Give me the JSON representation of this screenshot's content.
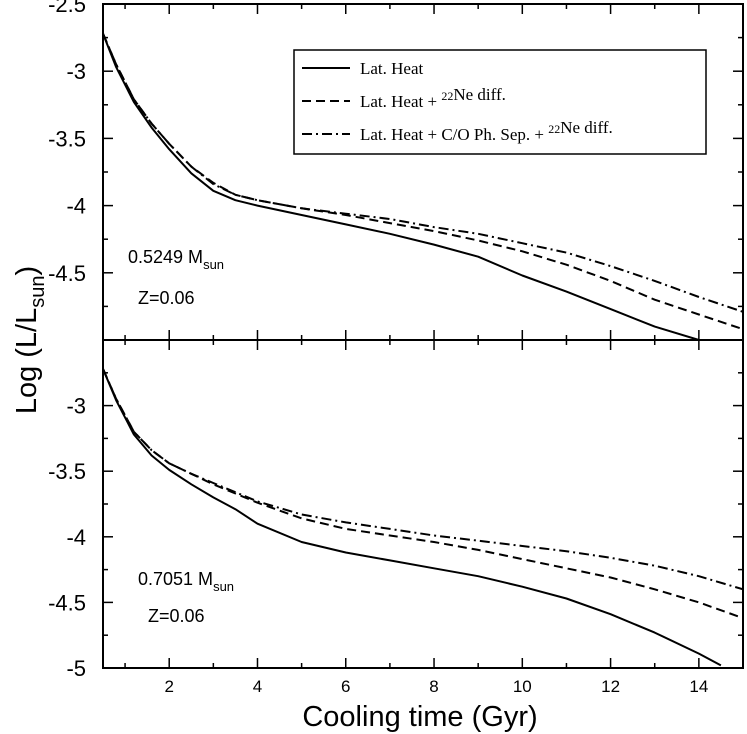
{
  "chart_data": {
    "type": "line",
    "xlabel": "Cooling time (Gyr)",
    "ylabel": "Log (L/L",
    "ylabel_sub": "sun",
    "ylabel_close": ")",
    "xlim": [
      0.5,
      15
    ],
    "x_ticks": [
      2,
      4,
      6,
      8,
      10,
      12,
      14
    ],
    "x_tick_labels": [
      "2",
      "4",
      "6",
      "8",
      "10",
      "12",
      "14"
    ],
    "legend": {
      "position": "top-right",
      "entries": [
        {
          "series": "lat_heat",
          "style": "solid",
          "parts": [
            {
              "t": "Lat. Heat"
            }
          ]
        },
        {
          "series": "ne_diff",
          "style": "dashed",
          "parts": [
            {
              "t": "Lat. Heat + "
            },
            {
              "t": "22",
              "sup": true
            },
            {
              "t": "Ne diff."
            }
          ]
        },
        {
          "series": "co_sep_ne_diff",
          "style": "dashdot",
          "parts": [
            {
              "t": "Lat. Heat + C/O Ph. Sep. + "
            },
            {
              "t": "22",
              "sup": true
            },
            {
              "t": "Ne diff."
            }
          ]
        }
      ]
    },
    "panels": [
      {
        "id": "top",
        "ylim": [
          -5.0,
          -2.5
        ],
        "y_ticks": [
          -2.5,
          -3,
          -3.5,
          -4,
          -4.5
        ],
        "y_tick_labels": [
          "-2.5",
          "-3",
          "-3.5",
          "-4",
          "-4.5"
        ],
        "annotation_mass": "0.5249 M",
        "annotation_mass_sub": "sun",
        "annotation_z": "Z=0.06",
        "series": [
          {
            "name": "lat_heat",
            "label": "Lat. Heat",
            "style": "solid",
            "points": [
              [
                0.5,
                -2.72
              ],
              [
                0.8,
                -2.97
              ],
              [
                1.2,
                -3.23
              ],
              [
                1.6,
                -3.42
              ],
              [
                2.0,
                -3.58
              ],
              [
                2.5,
                -3.76
              ],
              [
                3.0,
                -3.89
              ],
              [
                3.5,
                -3.96
              ],
              [
                4,
                -4.0
              ],
              [
                5,
                -4.07
              ],
              [
                6,
                -4.14
              ],
              [
                7,
                -4.21
              ],
              [
                8,
                -4.29
              ],
              [
                9,
                -4.38
              ],
              [
                10,
                -4.52
              ],
              [
                11,
                -4.64
              ],
              [
                12,
                -4.77
              ],
              [
                13,
                -4.9
              ],
              [
                14,
                -5.0
              ]
            ]
          },
          {
            "name": "ne_diff",
            "label": "Lat. Heat + 22Ne diff.",
            "style": "dashed",
            "points": [
              [
                0.5,
                -2.72
              ],
              [
                0.8,
                -2.95
              ],
              [
                1.2,
                -3.21
              ],
              [
                1.6,
                -3.39
              ],
              [
                2.0,
                -3.54
              ],
              [
                2.5,
                -3.71
              ],
              [
                3.0,
                -3.83
              ],
              [
                3.5,
                -3.92
              ],
              [
                4,
                -3.96
              ],
              [
                5,
                -4.02
              ],
              [
                6,
                -4.07
              ],
              [
                7,
                -4.13
              ],
              [
                8,
                -4.19
              ],
              [
                9,
                -4.26
              ],
              [
                10,
                -4.34
              ],
              [
                11,
                -4.44
              ],
              [
                12,
                -4.56
              ],
              [
                13,
                -4.7
              ],
              [
                14,
                -4.81
              ],
              [
                15,
                -4.92
              ]
            ]
          },
          {
            "name": "co_sep_ne_diff",
            "label": "Lat. Heat + C/O Ph. Sep. + 22Ne diff.",
            "style": "dashdot",
            "points": [
              [
                0.5,
                -2.72
              ],
              [
                0.8,
                -2.95
              ],
              [
                1.2,
                -3.21
              ],
              [
                1.6,
                -3.39
              ],
              [
                2.0,
                -3.54
              ],
              [
                2.5,
                -3.71
              ],
              [
                3.0,
                -3.84
              ],
              [
                3.5,
                -3.92
              ],
              [
                4,
                -3.96
              ],
              [
                5,
                -4.02
              ],
              [
                6,
                -4.06
              ],
              [
                7,
                -4.1
              ],
              [
                8,
                -4.16
              ],
              [
                9,
                -4.21
              ],
              [
                10,
                -4.28
              ],
              [
                11,
                -4.35
              ],
              [
                12,
                -4.45
              ],
              [
                13,
                -4.56
              ],
              [
                14,
                -4.68
              ],
              [
                15,
                -4.79
              ]
            ]
          }
        ]
      },
      {
        "id": "bottom",
        "ylim": [
          -5.0,
          -2.5
        ],
        "y_ticks": [
          -3,
          -3.5,
          -4,
          -4.5,
          -5
        ],
        "y_tick_labels": [
          "-3",
          "-3.5",
          "-4",
          "-4.5",
          "-5"
        ],
        "annotation_mass": "0.7051 M",
        "annotation_mass_sub": "sun",
        "annotation_z": "Z=0.06",
        "series": [
          {
            "name": "lat_heat",
            "label": "Lat. Heat",
            "style": "solid",
            "points": [
              [
                0.5,
                -2.72
              ],
              [
                0.8,
                -2.96
              ],
              [
                1.2,
                -3.22
              ],
              [
                1.6,
                -3.38
              ],
              [
                2.0,
                -3.49
              ],
              [
                2.5,
                -3.6
              ],
              [
                3.0,
                -3.7
              ],
              [
                3.5,
                -3.79
              ],
              [
                4,
                -3.9
              ],
              [
                5,
                -4.04
              ],
              [
                6,
                -4.12
              ],
              [
                7,
                -4.18
              ],
              [
                8,
                -4.24
              ],
              [
                9,
                -4.3
              ],
              [
                10,
                -4.38
              ],
              [
                11,
                -4.47
              ],
              [
                12,
                -4.59
              ],
              [
                13,
                -4.73
              ],
              [
                14,
                -4.89
              ],
              [
                14.5,
                -4.98
              ]
            ]
          },
          {
            "name": "ne_diff",
            "label": "Lat. Heat + 22Ne diff.",
            "style": "dashed",
            "points": [
              [
                0.5,
                -2.72
              ],
              [
                0.8,
                -2.95
              ],
              [
                1.2,
                -3.2
              ],
              [
                1.6,
                -3.34
              ],
              [
                2.0,
                -3.44
              ],
              [
                2.5,
                -3.52
              ],
              [
                3.0,
                -3.6
              ],
              [
                3.5,
                -3.67
              ],
              [
                4,
                -3.74
              ],
              [
                5,
                -3.86
              ],
              [
                6,
                -3.94
              ],
              [
                7,
                -3.99
              ],
              [
                8,
                -4.04
              ],
              [
                9,
                -4.1
              ],
              [
                10,
                -4.17
              ],
              [
                11,
                -4.24
              ],
              [
                12,
                -4.31
              ],
              [
                13,
                -4.4
              ],
              [
                14,
                -4.5
              ],
              [
                15,
                -4.62
              ]
            ]
          },
          {
            "name": "co_sep_ne_diff",
            "label": "Lat. Heat + C/O Ph. Sep. + 22Ne diff.",
            "style": "dashdot",
            "points": [
              [
                0.5,
                -2.72
              ],
              [
                0.8,
                -2.95
              ],
              [
                1.2,
                -3.2
              ],
              [
                1.6,
                -3.34
              ],
              [
                2.0,
                -3.44
              ],
              [
                2.5,
                -3.52
              ],
              [
                3.0,
                -3.59
              ],
              [
                3.5,
                -3.66
              ],
              [
                4,
                -3.73
              ],
              [
                5,
                -3.83
              ],
              [
                6,
                -3.89
              ],
              [
                7,
                -3.94
              ],
              [
                8,
                -3.99
              ],
              [
                9,
                -4.03
              ],
              [
                10,
                -4.07
              ],
              [
                11,
                -4.11
              ],
              [
                12,
                -4.16
              ],
              [
                13,
                -4.22
              ],
              [
                14,
                -4.3
              ],
              [
                15,
                -4.4
              ]
            ]
          }
        ]
      }
    ]
  }
}
